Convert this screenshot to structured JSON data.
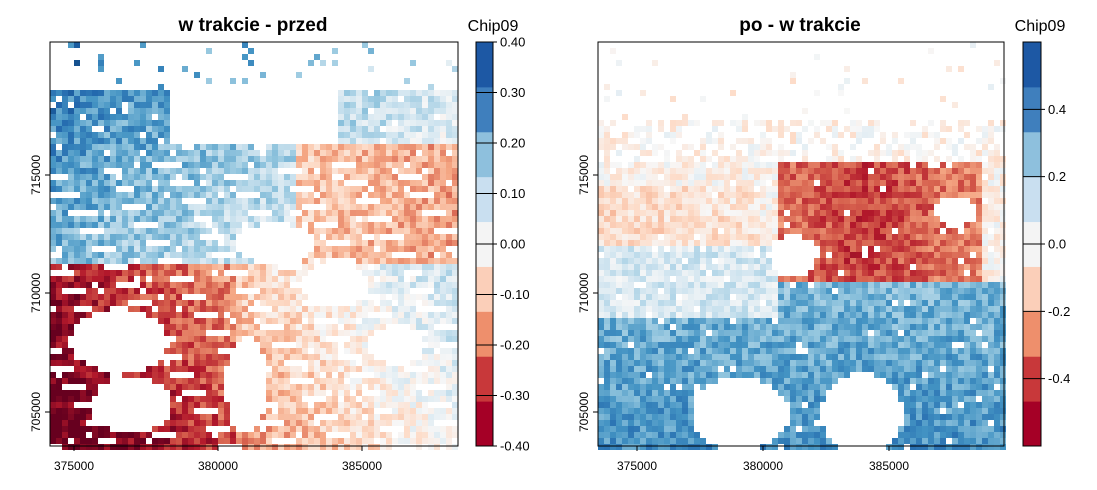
{
  "colors": {
    "legend_bins": [
      "#a50026",
      "#d73027",
      "#f46d43",
      "#fdae61",
      "#fee090",
      "#ffffbf"
    ],
    "rdbu": [
      "#67001f",
      "#b2182b",
      "#d6604d",
      "#f4a582",
      "#fddbc7",
      "#f7f7f7",
      "#d1e5f0",
      "#92c5de",
      "#4393c3",
      "#2166ac",
      "#053061"
    ]
  },
  "chart_data": [
    {
      "type": "heatmap",
      "title": "w trakcie - przed",
      "x_ticks": [
        "375000",
        "380000",
        "385000"
      ],
      "y_ticks": [
        "705000",
        "710000",
        "715000"
      ],
      "legend": {
        "title": "Chip09",
        "labels": [
          "0.40",
          "0.30",
          "0.20",
          "0.10",
          "0.00",
          "-0.10",
          "-0.20",
          "-0.30",
          "-0.40"
        ],
        "values": [
          0.4,
          0.3,
          0.2,
          0.1,
          0.0,
          -0.1,
          -0.2,
          -0.3,
          -0.4
        ],
        "colors": [
          "#a50026",
          "#c8383a",
          "#ee8f6c",
          "#fbcfb9",
          "#f4f4f4",
          "#c9dff0",
          "#8ec0dd",
          "#3f7fbd",
          "#1d58a4"
        ]
      }
    },
    {
      "type": "heatmap",
      "title": "po - w trakcie",
      "x_ticks": [
        "375000",
        "380000",
        "385000"
      ],
      "y_ticks": [
        "705000",
        "710000",
        "715000"
      ],
      "legend": {
        "title": "Chip09",
        "labels": [
          "0.4",
          "0.2",
          "0.0",
          "-0.2",
          "-0.4"
        ],
        "values": [
          0.4,
          0.2,
          0.0,
          -0.2,
          -0.4
        ],
        "colors": [
          "#a50026",
          "#c8383a",
          "#ee8f6c",
          "#fbcfb9",
          "#f4f4f4",
          "#c9dff0",
          "#8ec0dd",
          "#3f7fbd",
          "#1d58a4"
        ]
      }
    }
  ]
}
